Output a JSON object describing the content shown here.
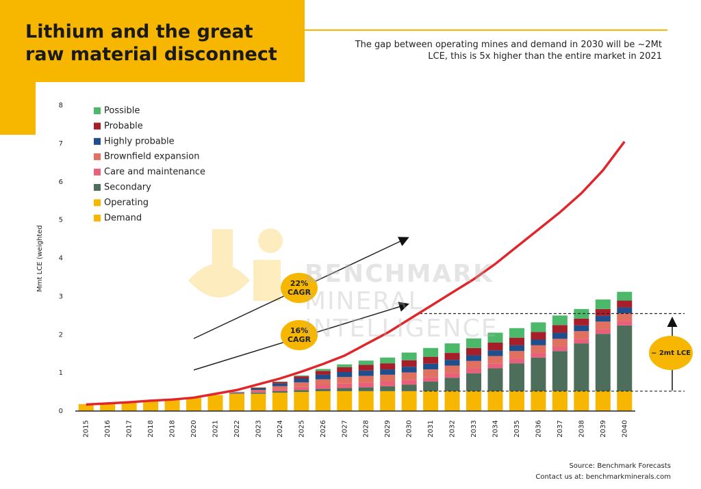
{
  "title": "Lithium and the great raw material disconnect",
  "subtitle": "The gap between operating mines and demand in 2030 will be ~2Mt LCE, this is 5x higher than the entire market in 2021",
  "watermark": [
    "BENCHMARK",
    "MINERAL",
    "INTELLIGENCE"
  ],
  "source": "Source: Benchmark Forecasts",
  "contact": "Contact us at: benchmarkminerals.com",
  "chart_data": {
    "type": "bar",
    "stacked": true,
    "y_label": "Mmt LCE (weighted",
    "categories": [
      "2015",
      "2016",
      "2017",
      "2018",
      "2018",
      "2020",
      "2021",
      "2022",
      "2023",
      "2024",
      "2025",
      "2026",
      "2027",
      "2028",
      "2029",
      "2030",
      "2031",
      "2032",
      "2033",
      "2034",
      "2035",
      "2036",
      "2037",
      "2038",
      "2039",
      "2040"
    ],
    "ylim": [
      0,
      8
    ],
    "yticks": [
      0,
      1,
      2,
      3,
      4,
      5,
      6,
      7,
      8
    ],
    "series": [
      {
        "name": "Possible",
        "type": "bar",
        "color": "#4cb86a",
        "values": [
          0,
          0,
          0,
          0,
          0,
          0,
          0,
          0,
          0.01,
          0.01,
          0.02,
          0.05,
          0.07,
          0.11,
          0.15,
          0.2,
          0.23,
          0.25,
          0.25,
          0.26,
          0.25,
          0.25,
          0.25,
          0.25,
          0.25,
          0.23
        ]
      },
      {
        "name": "Probable",
        "type": "bar",
        "color": "#a51e2a",
        "values": [
          0,
          0,
          0,
          0,
          0,
          0,
          0,
          0,
          0.02,
          0.04,
          0.06,
          0.1,
          0.13,
          0.15,
          0.16,
          0.17,
          0.18,
          0.18,
          0.19,
          0.2,
          0.2,
          0.2,
          0.2,
          0.18,
          0.18,
          0.18
        ]
      },
      {
        "name": "Highly probable",
        "type": "bar",
        "color": "#1f4e8c",
        "values": [
          0,
          0,
          0,
          0,
          0,
          0,
          0,
          0.01,
          0.04,
          0.07,
          0.1,
          0.12,
          0.13,
          0.14,
          0.14,
          0.15,
          0.15,
          0.15,
          0.15,
          0.15,
          0.15,
          0.15,
          0.16,
          0.15,
          0.15,
          0.15
        ]
      },
      {
        "name": "Brownfield expansion",
        "type": "bar",
        "color": "#e07060",
        "values": [
          0,
          0,
          0,
          0,
          0,
          0,
          0,
          0.01,
          0.04,
          0.08,
          0.12,
          0.15,
          0.17,
          0.18,
          0.18,
          0.2,
          0.2,
          0.2,
          0.2,
          0.2,
          0.2,
          0.2,
          0.2,
          0.2,
          0.2,
          0.2
        ]
      },
      {
        "name": "Care and maintenance",
        "type": "bar",
        "color": "#e8607a",
        "values": [
          0,
          0,
          0,
          0,
          0,
          0,
          0,
          0.01,
          0.03,
          0.05,
          0.08,
          0.1,
          0.12,
          0.12,
          0.12,
          0.12,
          0.12,
          0.12,
          0.12,
          0.12,
          0.12,
          0.12,
          0.12,
          0.12,
          0.12,
          0.12
        ]
      },
      {
        "name": "Secondary",
        "type": "bar",
        "color": "#4e6e5c",
        "values": [
          0,
          0,
          0,
          0,
          0,
          0,
          0,
          0.02,
          0.03,
          0.04,
          0.05,
          0.06,
          0.08,
          0.1,
          0.13,
          0.17,
          0.25,
          0.35,
          0.47,
          0.6,
          0.73,
          0.88,
          1.05,
          1.25,
          1.5,
          1.72
        ]
      },
      {
        "name": "Operating",
        "type": "bar",
        "color": "#f7b600",
        "values": [
          0.18,
          0.2,
          0.22,
          0.27,
          0.3,
          0.35,
          0.42,
          0.45,
          0.45,
          0.48,
          0.5,
          0.52,
          0.52,
          0.52,
          0.52,
          0.52,
          0.52,
          0.52,
          0.52,
          0.52,
          0.52,
          0.52,
          0.52,
          0.52,
          0.52,
          0.52
        ]
      },
      {
        "name": "Demand",
        "type": "line",
        "color": "#f7b600",
        "line_color": "#e0262b",
        "values": [
          0.17,
          0.2,
          0.23,
          0.27,
          0.3,
          0.35,
          0.45,
          0.55,
          0.7,
          0.85,
          1.03,
          1.23,
          1.45,
          1.75,
          2.05,
          2.4,
          2.75,
          3.1,
          3.45,
          3.85,
          4.3,
          4.75,
          5.2,
          5.7,
          6.3,
          7.05
        ]
      }
    ],
    "reference_lines": [
      2.55,
      0.52
    ],
    "annotations": [
      "22% CAGR",
      "16% CAGR",
      "~ 2mt LCE"
    ]
  }
}
